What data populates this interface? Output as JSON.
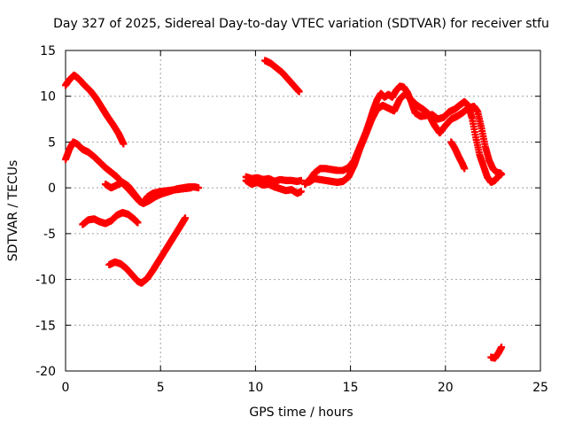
{
  "chart_data": {
    "type": "scatter",
    "title": "Day 327 of 2025, Sidereal Day-to-day VTEC variation (SDTVAR) for receiver stfu",
    "xlabel": "GPS time / hours",
    "ylabel": "SDTVAR / TECUs",
    "xlim": [
      0,
      25
    ],
    "ylim": [
      -20,
      15
    ],
    "xticks": [
      0,
      5,
      10,
      15,
      20,
      25
    ],
    "yticks": [
      -20,
      -15,
      -10,
      -5,
      0,
      5,
      10,
      15
    ],
    "grid": true,
    "marker": "+",
    "color": "#ff0000",
    "series": [
      {
        "name": "track-1",
        "points": [
          [
            0.0,
            11.2
          ],
          [
            0.2,
            11.8
          ],
          [
            0.45,
            12.3
          ],
          [
            0.7,
            11.9
          ],
          [
            1.0,
            11.2
          ],
          [
            1.3,
            10.6
          ],
          [
            1.6,
            9.8
          ],
          [
            1.9,
            8.8
          ],
          [
            2.2,
            7.8
          ],
          [
            2.5,
            6.9
          ],
          [
            2.8,
            5.9
          ],
          [
            3.05,
            4.8
          ]
        ]
      },
      {
        "name": "track-2",
        "points": [
          [
            0.0,
            3.1
          ],
          [
            0.2,
            4.2
          ],
          [
            0.4,
            5.0
          ],
          [
            0.6,
            4.8
          ],
          [
            0.9,
            4.2
          ],
          [
            1.2,
            3.9
          ],
          [
            1.5,
            3.4
          ],
          [
            1.8,
            2.8
          ],
          [
            2.1,
            2.2
          ],
          [
            2.4,
            1.7
          ],
          [
            2.7,
            1.2
          ],
          [
            3.0,
            0.5
          ],
          [
            3.3,
            -0.1
          ],
          [
            3.6,
            -0.8
          ],
          [
            3.9,
            -1.5
          ],
          [
            4.1,
            -1.7
          ],
          [
            4.4,
            -1.4
          ],
          [
            4.7,
            -1.0
          ],
          [
            5.0,
            -0.7
          ],
          [
            5.3,
            -0.5
          ],
          [
            5.6,
            -0.3
          ],
          [
            5.9,
            -0.1
          ],
          [
            6.2,
            0.0
          ],
          [
            6.5,
            0.1
          ],
          [
            6.8,
            0.1
          ],
          [
            7.0,
            0.0
          ]
        ]
      },
      {
        "name": "track-3",
        "points": [
          [
            2.1,
            0.4
          ],
          [
            2.4,
            0.0
          ],
          [
            2.7,
            0.3
          ],
          [
            3.0,
            0.6
          ],
          [
            3.3,
            0.2
          ],
          [
            3.6,
            -0.6
          ],
          [
            3.9,
            -1.4
          ],
          [
            4.1,
            -1.7
          ],
          [
            4.3,
            -1.0
          ],
          [
            4.6,
            -0.6
          ],
          [
            5.0,
            -0.4
          ],
          [
            5.4,
            -0.3
          ],
          [
            5.8,
            -0.2
          ],
          [
            6.2,
            -0.1
          ],
          [
            6.6,
            0.0
          ]
        ]
      },
      {
        "name": "track-4",
        "points": [
          [
            0.9,
            -4.0
          ],
          [
            1.2,
            -3.5
          ],
          [
            1.5,
            -3.4
          ],
          [
            1.8,
            -3.7
          ],
          [
            2.1,
            -3.9
          ],
          [
            2.4,
            -3.6
          ],
          [
            2.7,
            -3.0
          ],
          [
            3.0,
            -2.7
          ],
          [
            3.3,
            -2.9
          ],
          [
            3.6,
            -3.4
          ],
          [
            3.8,
            -3.8
          ]
        ]
      },
      {
        "name": "track-5",
        "points": [
          [
            2.3,
            -8.4
          ],
          [
            2.6,
            -8.1
          ],
          [
            2.9,
            -8.3
          ],
          [
            3.2,
            -8.8
          ],
          [
            3.5,
            -9.5
          ],
          [
            3.8,
            -10.2
          ],
          [
            4.0,
            -10.4
          ],
          [
            4.3,
            -9.9
          ],
          [
            4.6,
            -9.0
          ],
          [
            4.9,
            -8.0
          ],
          [
            5.2,
            -7.0
          ],
          [
            5.5,
            -6.0
          ],
          [
            5.8,
            -5.0
          ],
          [
            6.1,
            -4.0
          ],
          [
            6.3,
            -3.3
          ]
        ]
      },
      {
        "name": "track-6",
        "points": [
          [
            10.5,
            13.9
          ],
          [
            10.8,
            13.6
          ],
          [
            11.1,
            13.1
          ],
          [
            11.4,
            12.6
          ],
          [
            11.7,
            11.9
          ],
          [
            12.0,
            11.2
          ],
          [
            12.3,
            10.5
          ]
        ]
      },
      {
        "name": "track-7",
        "points": [
          [
            9.5,
            1.2
          ],
          [
            9.8,
            1.0
          ],
          [
            10.1,
            1.1
          ],
          [
            10.4,
            0.9
          ],
          [
            10.7,
            1.0
          ],
          [
            11.0,
            0.7
          ],
          [
            11.3,
            0.9
          ],
          [
            11.6,
            0.8
          ],
          [
            11.9,
            0.8
          ],
          [
            12.2,
            0.7
          ],
          [
            12.4,
            0.8
          ]
        ]
      },
      {
        "name": "track-8",
        "points": [
          [
            9.5,
            0.8
          ],
          [
            9.8,
            0.4
          ],
          [
            10.1,
            0.6
          ],
          [
            10.4,
            0.3
          ],
          [
            10.7,
            0.4
          ],
          [
            11.0,
            0.1
          ],
          [
            11.3,
            -0.1
          ],
          [
            11.6,
            -0.3
          ],
          [
            11.9,
            -0.2
          ],
          [
            12.2,
            -0.6
          ],
          [
            12.4,
            -0.4
          ]
        ]
      },
      {
        "name": "track-9",
        "points": [
          [
            12.6,
            0.4
          ],
          [
            12.9,
            1.0
          ],
          [
            13.1,
            1.6
          ],
          [
            13.4,
            2.1
          ],
          [
            13.7,
            2.1
          ],
          [
            14.0,
            2.0
          ],
          [
            14.3,
            1.9
          ],
          [
            14.6,
            1.9
          ],
          [
            14.9,
            2.2
          ],
          [
            15.2,
            3.0
          ],
          [
            15.5,
            4.5
          ],
          [
            15.8,
            6.0
          ],
          [
            16.0,
            7.2
          ],
          [
            16.2,
            8.5
          ],
          [
            16.4,
            9.6
          ],
          [
            16.6,
            10.3
          ],
          [
            16.8,
            9.9
          ],
          [
            17.0,
            10.2
          ],
          [
            17.2,
            9.9
          ],
          [
            17.4,
            10.6
          ],
          [
            17.6,
            11.1
          ],
          [
            17.8,
            11.0
          ],
          [
            18.0,
            10.4
          ],
          [
            18.2,
            9.4
          ],
          [
            18.4,
            8.2
          ],
          [
            18.7,
            7.8
          ],
          [
            19.0,
            7.9
          ],
          [
            19.3,
            8.0
          ],
          [
            19.6,
            7.5
          ],
          [
            19.9,
            7.7
          ],
          [
            20.2,
            8.3
          ],
          [
            20.5,
            8.6
          ],
          [
            20.8,
            9.1
          ],
          [
            21.0,
            9.4
          ],
          [
            21.2,
            9.0
          ],
          [
            21.4,
            7.6
          ],
          [
            21.6,
            5.5
          ],
          [
            21.8,
            3.6
          ],
          [
            22.0,
            2.4
          ],
          [
            22.2,
            1.2
          ],
          [
            22.4,
            0.6
          ],
          [
            22.6,
            0.8
          ],
          [
            22.8,
            1.3
          ],
          [
            22.95,
            1.5
          ]
        ]
      },
      {
        "name": "track-10",
        "points": [
          [
            12.8,
            0.6
          ],
          [
            13.1,
            1.0
          ],
          [
            13.4,
            0.9
          ],
          [
            13.7,
            0.8
          ],
          [
            14.0,
            0.7
          ],
          [
            14.3,
            0.6
          ],
          [
            14.6,
            0.7
          ],
          [
            14.9,
            1.2
          ],
          [
            15.2,
            2.5
          ],
          [
            15.5,
            4.3
          ],
          [
            15.8,
            5.8
          ],
          [
            16.1,
            7.4
          ],
          [
            16.4,
            8.6
          ],
          [
            16.7,
            9.0
          ],
          [
            17.0,
            8.7
          ],
          [
            17.3,
            8.4
          ],
          [
            17.6,
            9.7
          ],
          [
            17.9,
            10.3
          ],
          [
            18.2,
            9.6
          ],
          [
            18.5,
            9.0
          ],
          [
            18.8,
            8.6
          ],
          [
            19.1,
            8.1
          ],
          [
            19.4,
            6.9
          ],
          [
            19.7,
            6.0
          ],
          [
            20.0,
            6.8
          ],
          [
            20.3,
            7.5
          ],
          [
            20.6,
            7.8
          ],
          [
            20.9,
            8.2
          ],
          [
            21.2,
            8.7
          ],
          [
            21.5,
            8.9
          ],
          [
            21.7,
            8.3
          ],
          [
            21.9,
            6.5
          ],
          [
            22.1,
            4.5
          ],
          [
            22.3,
            3.0
          ],
          [
            22.5,
            2.1
          ],
          [
            22.7,
            1.7
          ],
          [
            22.9,
            1.6
          ]
        ]
      },
      {
        "name": "track-11",
        "points": [
          [
            20.3,
            5.0
          ],
          [
            20.5,
            4.3
          ],
          [
            20.7,
            3.4
          ],
          [
            20.9,
            2.6
          ],
          [
            21.0,
            2.1
          ]
        ]
      },
      {
        "name": "track-12",
        "points": [
          [
            22.4,
            -18.5
          ],
          [
            22.6,
            -18.6
          ],
          [
            22.8,
            -18.0
          ],
          [
            22.95,
            -17.4
          ]
        ]
      }
    ]
  }
}
